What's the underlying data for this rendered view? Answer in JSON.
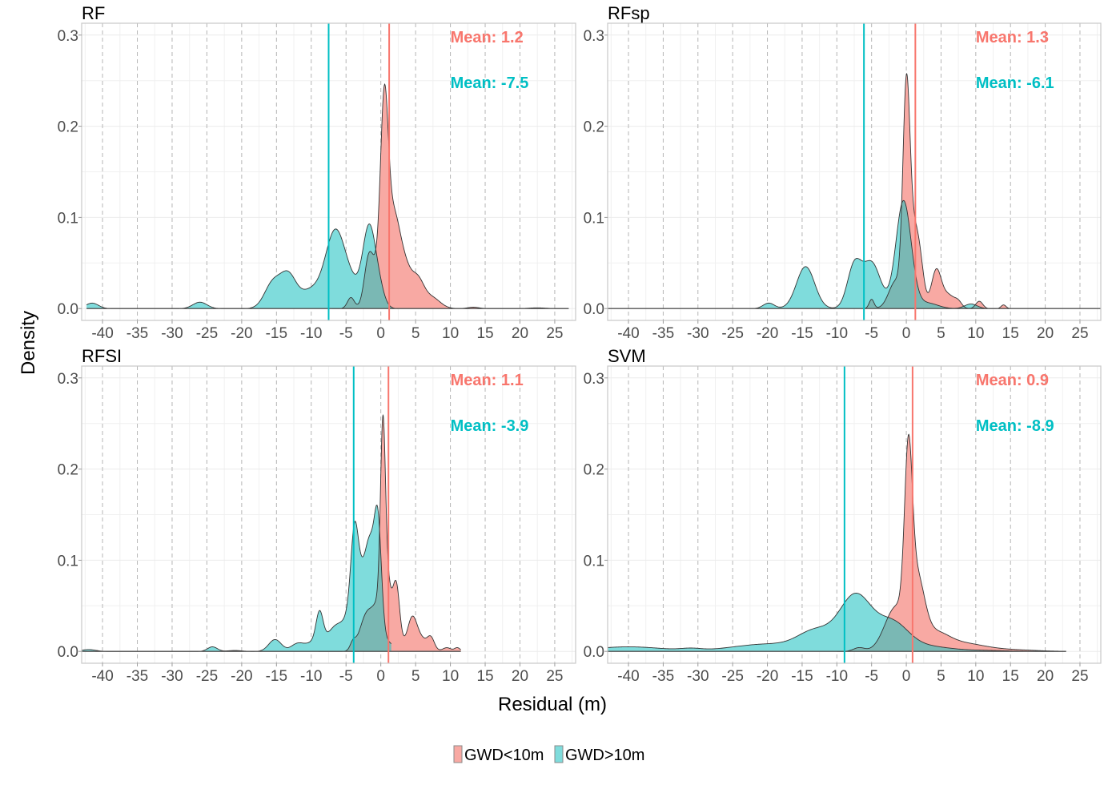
{
  "chart_data": {
    "type": "area",
    "subtype": "density",
    "xlabel": "Residual (m)",
    "ylabel": "Density",
    "xlim": [
      -43,
      28
    ],
    "ylim": [
      -0.013,
      0.313
    ],
    "x_ticks": [
      -40,
      -35,
      -30,
      -25,
      -20,
      -15,
      -10,
      -5,
      0,
      5,
      10,
      15,
      20,
      25
    ],
    "x_tick_labels": [
      "-40",
      "-35",
      "-30",
      "-25",
      "-20",
      "-15",
      "-10",
      "-5",
      "0",
      "5",
      "10",
      "15",
      "20",
      "25"
    ],
    "y_ticks": [
      0.0,
      0.1,
      0.2,
      0.3
    ],
    "y_tick_labels": [
      "0.0",
      "0.1",
      "0.2",
      "0.3"
    ],
    "grid": true,
    "vertical_dashed_lines_at": [
      -40,
      -35,
      -30,
      -25,
      -20,
      -15,
      -10,
      -5,
      0,
      5,
      10,
      15,
      20,
      25
    ],
    "legend": {
      "position": "bottom",
      "entries": [
        {
          "label": "GWD<10m",
          "color": "#f8766d"
        },
        {
          "label": "GWD>10m",
          "color": "#00bfc4"
        }
      ]
    },
    "colors": {
      "low": "#f8766d",
      "low_fill": "#f8a9a3",
      "high": "#00bfc4",
      "high_fill": "#7fdcdc",
      "overlap_fill": "#7ab8b4"
    },
    "panels": [
      {
        "title": "RF",
        "means": {
          "low": 1.2,
          "high": -7.5
        },
        "mean_labels": {
          "low": "Mean: 1.2",
          "high": "Mean: -7.5"
        },
        "baseline_full_width": false,
        "series": {
          "low": {
            "range": [
              -7,
              27
            ],
            "components": [
              [
                -4.3,
                0.5,
                0.012
              ],
              [
                -1.8,
                0.6,
                0.035
              ],
              [
                -0.8,
                1.0,
                0.04
              ],
              [
                0.5,
                0.55,
                0.19
              ],
              [
                1.7,
                0.9,
                0.09
              ],
              [
                3.3,
                1.0,
                0.045
              ],
              [
                5.3,
                0.9,
                0.028
              ],
              [
                7.3,
                1.2,
                0.012
              ],
              [
                13.3,
                0.8,
                0.0015
              ],
              [
                22.5,
                1.2,
                0.0008
              ]
            ]
          },
          "high": {
            "range": [
              -42.3,
              2.5
            ],
            "components": [
              [
                -41.5,
                0.9,
                0.006
              ],
              [
                -26.0,
                1.0,
                0.007
              ],
              [
                -15.5,
                1.2,
                0.028
              ],
              [
                -13.3,
                1.1,
                0.032
              ],
              [
                -10.0,
                1.8,
                0.02
              ],
              [
                -6.5,
                1.4,
                0.082
              ],
              [
                -4.0,
                1.2,
                0.02
              ],
              [
                -1.7,
                0.9,
                0.085
              ],
              [
                -0.3,
                0.8,
                0.02
              ]
            ]
          }
        }
      },
      {
        "title": "RFsp",
        "means": {
          "low": 1.3,
          "high": -6.1
        },
        "mean_labels": {
          "low": "Mean: 1.3",
          "high": "Mean: -6.1"
        },
        "baseline_full_width": true,
        "series": {
          "low": {
            "range": [
              -6,
              15
            ],
            "components": [
              [
                -5.0,
                0.35,
                0.01
              ],
              [
                -1.5,
                1.0,
                0.03
              ],
              [
                0.0,
                0.5,
                0.21
              ],
              [
                1.0,
                0.8,
                0.08
              ],
              [
                2.0,
                0.6,
                0.03
              ],
              [
                4.3,
                0.7,
                0.04
              ],
              [
                6.0,
                1.0,
                0.015
              ],
              [
                7.5,
                0.5,
                0.005
              ],
              [
                10.5,
                0.5,
                0.008
              ],
              [
                14.0,
                0.35,
                0.004
              ]
            ]
          },
          "high": {
            "range": [
              -22,
              12
            ],
            "components": [
              [
                -19.8,
                0.8,
                0.006
              ],
              [
                -14.5,
                1.3,
                0.046
              ],
              [
                -7.5,
                1.0,
                0.045
              ],
              [
                -5.0,
                1.3,
                0.05
              ],
              [
                -0.4,
                1.1,
                0.118
              ],
              [
                3.0,
                1.5,
                0.006
              ],
              [
                9.3,
                0.9,
                0.005
              ]
            ]
          }
        }
      },
      {
        "title": "RFSI",
        "means": {
          "low": 1.1,
          "high": -3.9
        },
        "mean_labels": {
          "low": "Mean: 1.1",
          "high": "Mean: -3.9"
        },
        "baseline_full_width": false,
        "series": {
          "low": {
            "range": [
              -9,
              11.5
            ],
            "components": [
              [
                -4.0,
                0.4,
                0.008
              ],
              [
                -2.0,
                1.0,
                0.04
              ],
              [
                0.3,
                0.35,
                0.19
              ],
              [
                0.0,
                0.9,
                0.05
              ],
              [
                1.0,
                0.5,
                0.05
              ],
              [
                2.2,
                0.5,
                0.07
              ],
              [
                4.5,
                0.6,
                0.02
              ],
              [
                5.0,
                1.3,
                0.02
              ],
              [
                7.2,
                0.5,
                0.012
              ],
              [
                9.5,
                0.6,
                0.004
              ],
              [
                11.0,
                0.4,
                0.004
              ]
            ]
          },
          "high": {
            "range": [
              -43,
              1.5
            ],
            "components": [
              [
                -42.0,
                1.0,
                0.002
              ],
              [
                -24.2,
                0.7,
                0.005
              ],
              [
                -21.0,
                1.0,
                0.001
              ],
              [
                -15.2,
                0.9,
                0.013
              ],
              [
                -12.0,
                0.9,
                0.008
              ],
              [
                -8.8,
                0.5,
                0.032
              ],
              [
                -9.5,
                1.2,
                0.01
              ],
              [
                -6.5,
                1.2,
                0.02
              ],
              [
                -3.8,
                0.5,
                0.06
              ],
              [
                -3.3,
                1.0,
                0.06
              ],
              [
                -1.5,
                0.7,
                0.08
              ],
              [
                -0.4,
                0.5,
                0.11
              ],
              [
                -2.5,
                2.5,
                0.03
              ]
            ]
          }
        }
      },
      {
        "title": "SVM",
        "means": {
          "low": 0.9,
          "high": -8.9
        },
        "mean_labels": {
          "low": "Mean: 0.9",
          "high": "Mean: -8.9"
        },
        "baseline_full_width": false,
        "series": {
          "low": {
            "range": [
              -10,
              23
            ],
            "components": [
              [
                -6.8,
                0.8,
                0.004
              ],
              [
                -1.5,
                1.6,
                0.048
              ],
              [
                0.3,
                0.55,
                0.17
              ],
              [
                1.5,
                1.1,
                0.07
              ],
              [
                4.0,
                2.0,
                0.018
              ],
              [
                8.0,
                3.0,
                0.008
              ],
              [
                14.0,
                4.0,
                0.002
              ]
            ]
          },
          "high": {
            "range": [
              -43,
              23
            ],
            "components": [
              [
                -40.0,
                5.0,
                0.005
              ],
              [
                -31.0,
                1.5,
                0.002
              ],
              [
                -20.0,
                5.0,
                0.008
              ],
              [
                -13.0,
                2.5,
                0.02
              ],
              [
                -7.3,
                2.3,
                0.06
              ],
              [
                -2.0,
                2.3,
                0.03
              ],
              [
                3.0,
                3.0,
                0.005
              ],
              [
                10.0,
                4.0,
                0.0012
              ]
            ]
          }
        }
      }
    ]
  }
}
